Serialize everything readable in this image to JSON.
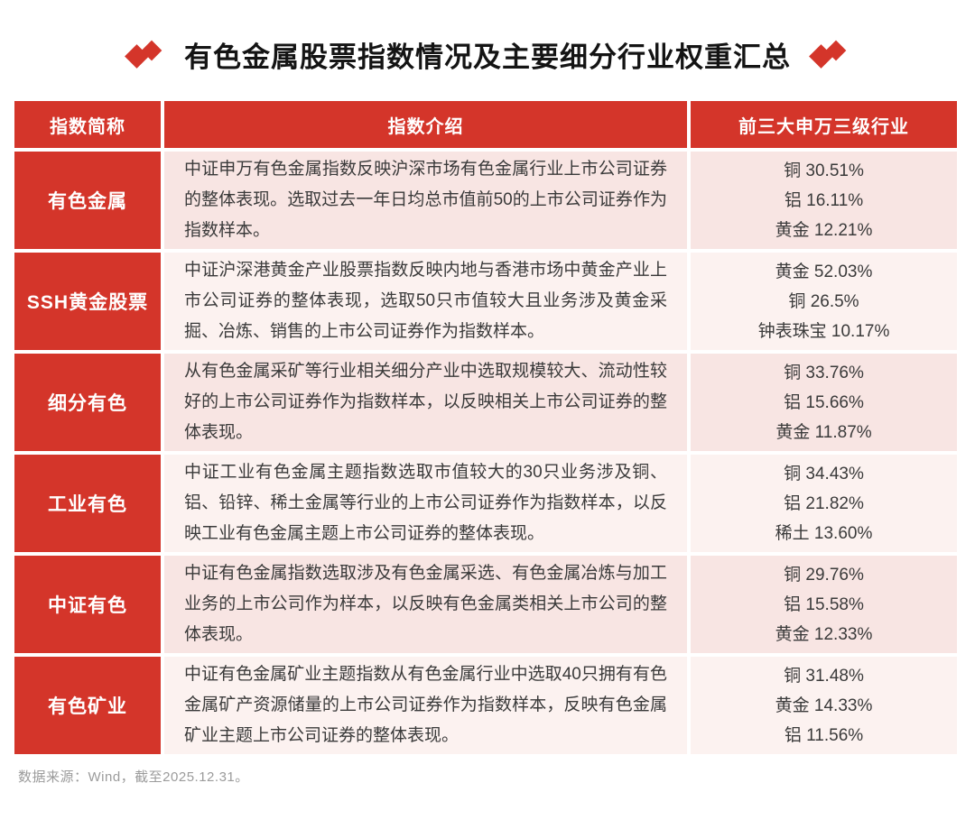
{
  "title": {
    "text": "有色金属股票指数情况及主要细分行业权重汇总"
  },
  "colors": {
    "accent_red": "#d4352a",
    "row_pink": "#f8e5e3",
    "row_light": "#fcf2f0",
    "header_text": "#ffffff",
    "body_text": "#3a3a3a",
    "footer_text": "#9b9b9b"
  },
  "icons": {
    "title_decoration": "double-diamond-icon"
  },
  "table": {
    "headers": [
      "指数简称",
      "指数介绍",
      "前三大申万三级行业"
    ],
    "rows": [
      {
        "name": "有色金属",
        "desc": "中证申万有色金属指数反映沪深市场有色金属行业上市公司证券的整体表现。选取过去一年日均总市值前50的上市公司证券作为指数样本。",
        "weights": [
          "铜 30.51%",
          "铝 16.11%",
          "黄金 12.21%"
        ]
      },
      {
        "name": "SSH黄金股票",
        "desc": "中证沪深港黄金产业股票指数反映内地与香港市场中黄金产业上市公司证券的整体表现，选取50只市值较大且业务涉及黄金采掘、冶炼、销售的上市公司证券作为指数样本。",
        "weights": [
          "黄金 52.03%",
          "铜 26.5%",
          "钟表珠宝 10.17%"
        ]
      },
      {
        "name": "细分有色",
        "desc": "从有色金属采矿等行业相关细分产业中选取规模较大、流动性较好的上市公司证券作为指数样本，以反映相关上市公司证券的整体表现。",
        "weights": [
          "铜 33.76%",
          "铝 15.66%",
          "黄金 11.87%"
        ]
      },
      {
        "name": "工业有色",
        "desc": "中证工业有色金属主题指数选取市值较大的30只业务涉及铜、铝、铅锌、稀土金属等行业的上市公司证券作为指数样本，以反映工业有色金属主题上市公司证券的整体表现。",
        "weights": [
          "铜 34.43%",
          "铝 21.82%",
          "稀土 13.60%"
        ]
      },
      {
        "name": "中证有色",
        "desc": "中证有色金属指数选取涉及有色金属采选、有色金属冶炼与加工业务的上市公司作为样本，以反映有色金属类相关上市公司的整体表现。",
        "weights": [
          "铜 29.76%",
          "铝 15.58%",
          "黄金 12.33%"
        ]
      },
      {
        "name": "有色矿业",
        "desc": "中证有色金属矿业主题指数从有色金属行业中选取40只拥有有色金属矿产资源储量的上市公司证券作为指数样本，反映有色金属矿业主题上市公司证券的整体表现。",
        "weights": [
          "铜 31.48%",
          "黄金 14.33%",
          "铝 11.56%"
        ]
      }
    ]
  },
  "footer": {
    "source": "数据来源：Wind，截至2025.12.31。"
  }
}
